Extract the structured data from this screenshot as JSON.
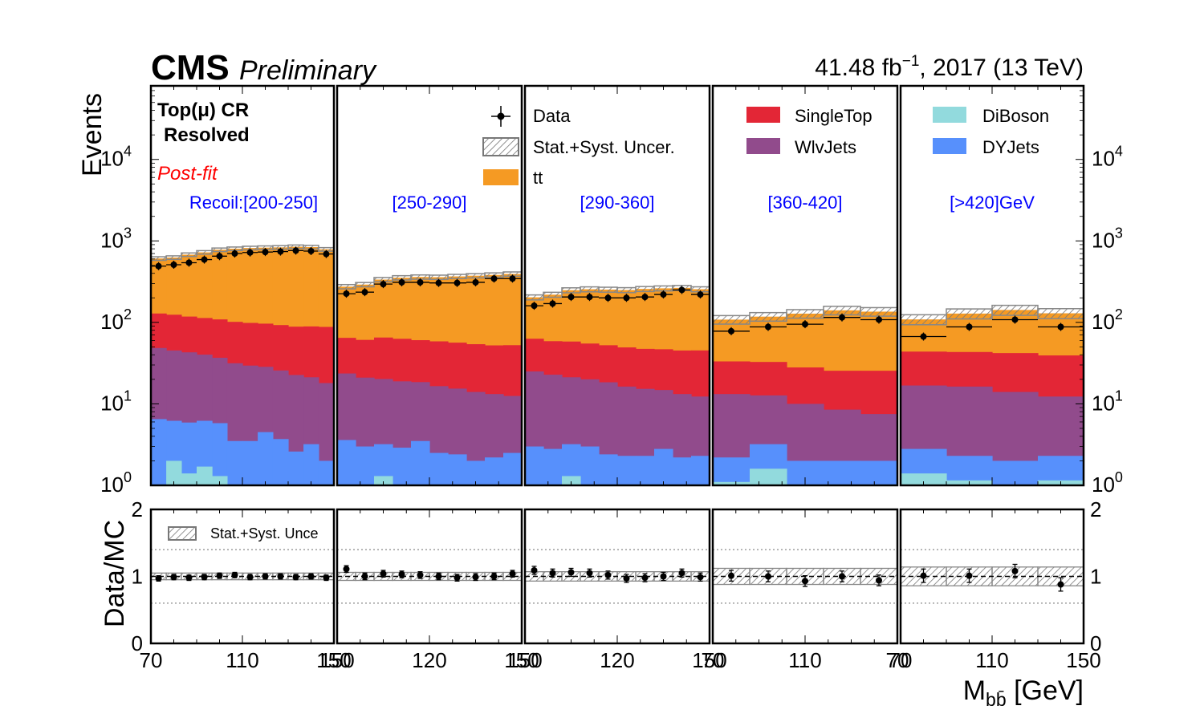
{
  "header": {
    "cms": "CMS",
    "preliminary": "Preliminary",
    "lumi": "41.48 fb",
    "lumi_exp": "−1",
    "lumi_rest": ", 2017 (13 TeV)"
  },
  "labels": {
    "region_line1": "Top(μ) CR",
    "region_line2": "Resolved",
    "postfit": "Post-fit",
    "ylabel_main": "Events",
    "ylabel_ratio": "Data/MC",
    "xlabel": "M",
    "xlabel_sub": "bb̄",
    "xlabel_unit": " [GeV]",
    "ratio_legend": "Stat.+Syst. Unce"
  },
  "legend": {
    "data": "Data",
    "uncert": "Stat.+Syst. Uncer.",
    "tt": "tt",
    "singletop": "SingleTop",
    "wlvjets": "WlvJets",
    "diboson": "DiBoson",
    "dyjets": "DYJets"
  },
  "colors": {
    "tt": "#f59a23",
    "singletop": "#e32636",
    "wlvjets": "#914b8c",
    "dyjets": "#5790fc",
    "diboson": "#92dadd",
    "recoil_text": "#0000ff",
    "postfit_text": "#ff0000"
  },
  "chart_data": {
    "type": "bar",
    "stacked": true,
    "yscale": "log",
    "ylim": [
      1,
      80000
    ],
    "ratio_ylim": [
      0,
      2
    ],
    "ratio_reference_lines": [
      0.6,
      1.0,
      1.4
    ],
    "panels": [
      {
        "recoil_label": "Recoil:[200-250]",
        "xlim": [
          70,
          150
        ],
        "bins": [
          70,
          76.7,
          83.3,
          90,
          96.7,
          103.3,
          110,
          116.7,
          123.3,
          130,
          136.7,
          143.3,
          150
        ],
        "tick_labels": [
          "70",
          "110",
          "150"
        ],
        "series": {
          "DiBoson": [
            1,
            2.0,
            1.4,
            1.7,
            1.3,
            1,
            1,
            1,
            1,
            1,
            1,
            1
          ],
          "DYJets": [
            5.5,
            4.2,
            4.5,
            4.5,
            4.5,
            2.5,
            2.5,
            3.5,
            2.7,
            1.6,
            2.2,
            1
          ],
          "WlvJets": [
            42,
            39,
            37,
            34,
            31,
            28,
            26,
            24,
            22,
            20,
            18,
            16
          ],
          "SingleTop": [
            80,
            79,
            75,
            73,
            72,
            70,
            69,
            68,
            67,
            66,
            68,
            70
          ],
          "tt": [
            480,
            500,
            560,
            610,
            670,
            700,
            720,
            730,
            740,
            760,
            750,
            700
          ]
        },
        "data": [
          490,
          510,
          540,
          590,
          650,
          700,
          720,
          730,
          740,
          760,
          750,
          690
        ],
        "ratio": [
          0.97,
          0.99,
          0.98,
          0.99,
          1.01,
          1.02,
          0.99,
          1.0,
          1.0,
          0.99,
          1.0,
          0.98
        ],
        "ratio_err": [
          0.04,
          0.04,
          0.04,
          0.04,
          0.04,
          0.04,
          0.04,
          0.04,
          0.04,
          0.04,
          0.04,
          0.04
        ],
        "uncert": [
          0.05,
          0.05,
          0.05,
          0.05,
          0.05,
          0.05,
          0.05,
          0.05,
          0.05,
          0.05,
          0.05,
          0.05
        ]
      },
      {
        "recoil_label": "[250-290]",
        "xlim": [
          70,
          150
        ],
        "bins": [
          70,
          78,
          86,
          94,
          102,
          110,
          118,
          126,
          134,
          142,
          150
        ],
        "tick_labels": [
          "150",
          "120",
          "150"
        ],
        "series": {
          "DiBoson": [
            1,
            1,
            1.3,
            1,
            1,
            1,
            1,
            1,
            1,
            1
          ],
          "DYJets": [
            2.6,
            2.0,
            1.9,
            1.9,
            2.5,
            1.5,
            1.4,
            1.0,
            1.2,
            1.5
          ],
          "WlvJets": [
            20,
            18,
            17,
            16,
            15,
            14,
            13,
            12,
            11,
            10
          ],
          "SingleTop": [
            41,
            40,
            45,
            44,
            42,
            42,
            41,
            40,
            39,
            40
          ],
          "tt": [
            210,
            230,
            270,
            290,
            300,
            300,
            310,
            320,
            330,
            340
          ]
        },
        "data": [
          225,
          235,
          295,
          310,
          310,
          305,
          305,
          310,
          345,
          345
        ],
        "ratio": [
          1.11,
          1.0,
          1.04,
          1.03,
          1.02,
          1.0,
          0.98,
          0.99,
          1.0,
          1.04
        ],
        "ratio_err": [
          0.05,
          0.05,
          0.05,
          0.05,
          0.05,
          0.05,
          0.05,
          0.05,
          0.05,
          0.05
        ],
        "uncert": [
          0.06,
          0.06,
          0.06,
          0.06,
          0.06,
          0.06,
          0.06,
          0.06,
          0.06,
          0.06
        ]
      },
      {
        "recoil_label": "[290-360]",
        "xlim": [
          70,
          150
        ],
        "bins": [
          70,
          78,
          86,
          94,
          102,
          110,
          118,
          126,
          134,
          142,
          150
        ],
        "tick_labels": [
          "150",
          "120",
          "150"
        ],
        "series": {
          "DiBoson": [
            1,
            1,
            1.3,
            1,
            1,
            1,
            1,
            1,
            1,
            1
          ],
          "DYJets": [
            2.0,
            1.8,
            1.9,
            2.0,
            1.4,
            1.3,
            1.3,
            1.8,
            1.2,
            1.3
          ],
          "WlvJets": [
            22,
            20,
            18,
            17,
            16,
            14,
            13,
            12,
            11,
            10
          ],
          "SingleTop": [
            38,
            36,
            37,
            35,
            34,
            33,
            32,
            32,
            32,
            33
          ],
          "tt": [
            140,
            160,
            190,
            200,
            200,
            200,
            210,
            215,
            220,
            210
          ]
        },
        "data": [
          160,
          170,
          205,
          205,
          200,
          200,
          205,
          220,
          250,
          220
        ],
        "ratio": [
          1.09,
          1.05,
          1.06,
          1.05,
          1.02,
          0.97,
          0.98,
          1.0,
          1.05,
          0.99
        ],
        "ratio_err": [
          0.06,
          0.06,
          0.06,
          0.06,
          0.06,
          0.06,
          0.06,
          0.06,
          0.06,
          0.06
        ],
        "uncert": [
          0.07,
          0.07,
          0.07,
          0.07,
          0.07,
          0.07,
          0.07,
          0.07,
          0.07,
          0.07
        ]
      },
      {
        "recoil_label": "[360-420]",
        "xlim": [
          70,
          150
        ],
        "bins": [
          70,
          86,
          102,
          118,
          134,
          150
        ],
        "tick_labels": [
          "70",
          "110",
          "70"
        ],
        "series": {
          "DiBoson": [
            1.1,
            1.6,
            1,
            1,
            1
          ],
          "DYJets": [
            1.1,
            1.6,
            1,
            1,
            1
          ],
          "WlvJets": [
            11,
            9.5,
            8,
            6.5,
            5.5
          ],
          "SingleTop": [
            20,
            20,
            18,
            17,
            18
          ],
          "tt": [
            75,
            85,
            100,
            115,
            110
          ]
        },
        "data": [
          78,
          88,
          95,
          115,
          108
        ],
        "ratio": [
          1.01,
          1.0,
          0.93,
          1.0,
          0.94
        ],
        "ratio_err": [
          0.08,
          0.08,
          0.08,
          0.08,
          0.08
        ],
        "uncert": [
          0.12,
          0.12,
          0.12,
          0.12,
          0.12
        ]
      },
      {
        "recoil_label": "[>420]GeV",
        "xlim": [
          70,
          150
        ],
        "bins": [
          70,
          90,
          110,
          130,
          150
        ],
        "tick_labels": [
          "70",
          "110",
          "150"
        ],
        "series": {
          "DiBoson": [
            1.4,
            1.15,
            1,
            1.15
          ],
          "DYJets": [
            1.4,
            1.15,
            1,
            1.15
          ],
          "WlvJets": [
            14,
            14,
            12,
            10
          ],
          "SingleTop": [
            27,
            27,
            28,
            27
          ],
          "tt": [
            65,
            85,
            100,
            90
          ]
        },
        "data": [
          67,
          88,
          108,
          88
        ],
        "ratio": [
          1.01,
          1.01,
          1.08,
          0.88
        ],
        "ratio_err": [
          0.1,
          0.1,
          0.1,
          0.1
        ],
        "uncert": [
          0.14,
          0.14,
          0.14,
          0.14
        ]
      }
    ]
  }
}
